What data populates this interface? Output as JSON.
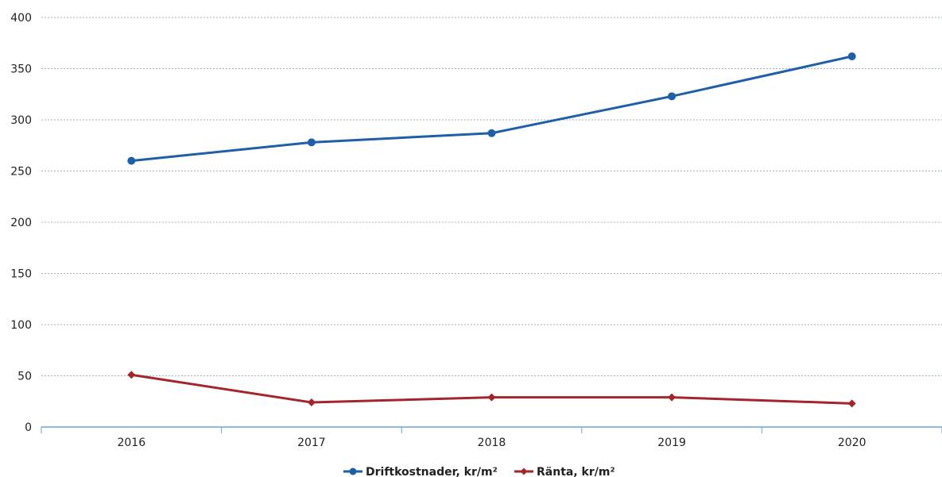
{
  "chart_data": {
    "type": "line",
    "title": "",
    "xlabel": "",
    "ylabel": "",
    "categories": [
      "2016",
      "2017",
      "2018",
      "2019",
      "2020"
    ],
    "ylim": [
      0,
      400
    ],
    "yticks": [
      0,
      50,
      100,
      150,
      200,
      250,
      300,
      350,
      400
    ],
    "grid": true,
    "legend_position": "bottom",
    "series": [
      {
        "name": "Driftkostnader, kr/m²",
        "values": [
          260,
          278,
          287,
          323,
          362
        ],
        "color": "#1f5fa8",
        "marker": "circle"
      },
      {
        "name": "Ränta, kr/m²",
        "values": [
          51,
          24,
          29,
          29,
          23
        ],
        "color": "#a3262c",
        "marker": "diamond"
      }
    ]
  }
}
